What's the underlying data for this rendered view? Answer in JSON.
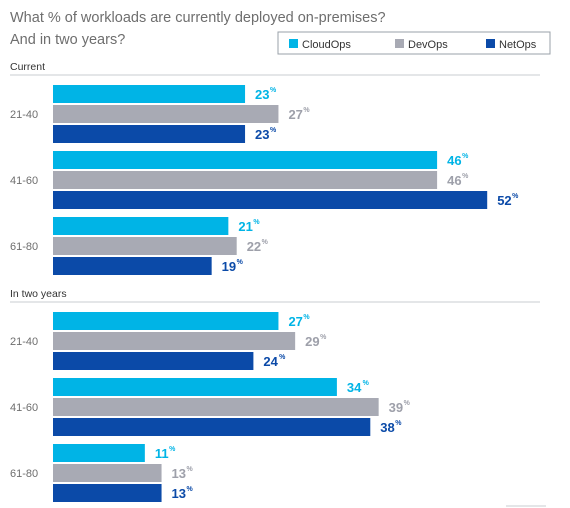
{
  "chart_data": {
    "type": "bar",
    "orientation": "horizontal",
    "title": "What % of workloads are currently deployed on-premises? And in two years?",
    "legend_position": "top-right",
    "series": [
      {
        "name": "CloudOps",
        "color": "#00b4e6"
      },
      {
        "name": "DevOps",
        "color": "#a8aab4"
      },
      {
        "name": "NetOps",
        "color": "#0b4aa8"
      }
    ],
    "value_suffix": "%",
    "groups": [
      {
        "label": "Current",
        "categories": [
          {
            "label": "21-40",
            "values": [
              23,
              27,
              23
            ]
          },
          {
            "label": "41-60",
            "values": [
              46,
              46,
              52
            ]
          },
          {
            "label": "61-80",
            "values": [
              21,
              22,
              19
            ]
          }
        ]
      },
      {
        "label": "In two years",
        "categories": [
          {
            "label": "21-40",
            "values": [
              27,
              29,
              24
            ]
          },
          {
            "label": "41-60",
            "values": [
              34,
              39,
              38
            ]
          },
          {
            "label": "61-80",
            "values": [
              11,
              13,
              13
            ]
          }
        ]
      }
    ]
  }
}
